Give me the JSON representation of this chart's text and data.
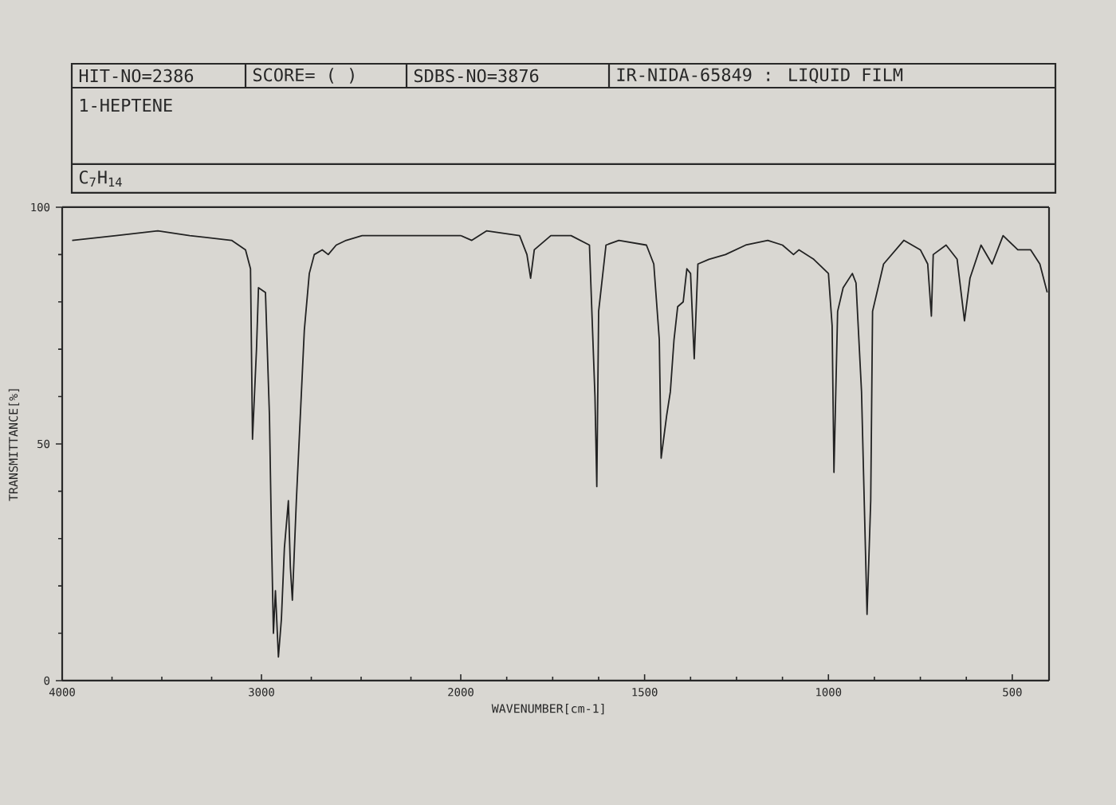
{
  "chart_data": [
    {
      "type": "line",
      "title": "1-HEPTENE",
      "subtitle": "C$_{7}$H$_{14}$",
      "annotations": [
        "HIT-NO=2386",
        "SCORE= (   )",
        "SDBS-NO=3876",
        "IR-NIDA-65849 : LIQUID FILM"
      ],
      "ylabel": "TRANSMITTANCE[%]",
      "x": [
        3950,
        3730,
        3520,
        3360,
        3150,
        3080,
        3055,
        3045,
        3025,
        3015,
        2980,
        2960,
        2950,
        2940,
        2930,
        2915,
        2900,
        2885,
        2865,
        2855,
        2845,
        2825,
        2805,
        2785,
        2760,
        2735,
        2695,
        2665,
        2625,
        2575,
        2495,
        2295,
        2025,
        2000
      ],
      "values": [
        93,
        94,
        95,
        94,
        93,
        91,
        87,
        51,
        70,
        83,
        82,
        56,
        31,
        10,
        19,
        5,
        13,
        28,
        38,
        24,
        17,
        38,
        56,
        74,
        86,
        90,
        91,
        90,
        92,
        93,
        94,
        94,
        94,
        94
      ],
      "color": "#222222",
      "xlim": [
        4000,
        2000
      ],
      "ylim": [
        0,
        100
      ],
      "xticks": [
        4000,
        3000
      ],
      "yticks": [
        0,
        50,
        100
      ]
    },
    {
      "type": "line",
      "xlabel": "WAVENUMBER[cm-1]",
      "x": [
        2000,
        1970,
        1930,
        1840,
        1820,
        1810,
        1800,
        1755,
        1700,
        1650,
        1635,
        1630,
        1625,
        1605,
        1570,
        1495,
        1475,
        1460,
        1455,
        1440,
        1430,
        1420,
        1410,
        1395,
        1385,
        1375,
        1365,
        1355,
        1325,
        1280,
        1225,
        1165,
        1125,
        1095,
        1080,
        1040,
        1000,
        990,
        985,
        975,
        960,
        935,
        925,
        910,
        895,
        885,
        880,
        850,
        795,
        750,
        730,
        720,
        715,
        680,
        650,
        630,
        615,
        585,
        555,
        525,
        485,
        450,
        425,
        405
      ],
      "values": [
        94,
        93,
        95,
        94,
        90,
        85,
        91,
        94,
        94,
        92,
        60,
        41,
        78,
        92,
        93,
        92,
        88,
        72,
        47,
        56,
        61,
        72,
        79,
        80,
        87,
        86,
        68,
        88,
        89,
        90,
        92,
        93,
        92,
        90,
        91,
        89,
        86,
        75,
        44,
        78,
        83,
        86,
        84,
        61,
        14,
        38,
        78,
        88,
        93,
        91,
        88,
        77,
        90,
        92,
        89,
        76,
        85,
        92,
        88,
        94,
        91,
        91,
        88,
        82
      ],
      "color": "#222222",
      "xlim": [
        2000,
        400
      ],
      "ylim": [
        0,
        100
      ],
      "xticks": [
        2000,
        1500,
        1000,
        500
      ],
      "tick_labels": "x"
    }
  ]
}
